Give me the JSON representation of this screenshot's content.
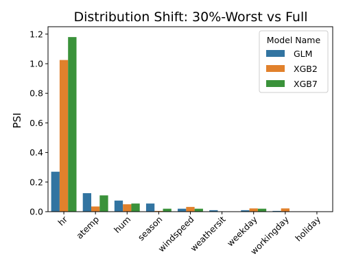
{
  "chart_data": {
    "type": "bar",
    "title": "Distribution Shift: 30%-Worst vs Full",
    "xlabel": "",
    "ylabel": "PSI",
    "ylim": [
      0,
      1.25
    ],
    "yticks": [
      "0.0",
      "0.2",
      "0.4",
      "0.6",
      "0.8",
      "1.0",
      "1.2"
    ],
    "categories": [
      "hr",
      "atemp",
      "hum",
      "season",
      "windspeed",
      "weathersit",
      "weekday",
      "workingday",
      "holiday"
    ],
    "legend": {
      "title": "Model Name",
      "placement": "top-right"
    },
    "series": [
      {
        "name": "GLM",
        "color": "#3274a1",
        "values": [
          0.27,
          0.125,
          0.075,
          0.055,
          0.02,
          0.01,
          0.01,
          0.005,
          0.0
        ]
      },
      {
        "name": "XGB2",
        "color": "#e1812c",
        "values": [
          1.025,
          0.035,
          0.05,
          0.005,
          0.032,
          0.0,
          0.022,
          0.022,
          0.0
        ]
      },
      {
        "name": "XGB7",
        "color": "#3a923a",
        "values": [
          1.18,
          0.11,
          0.055,
          0.02,
          0.02,
          0.0,
          0.02,
          0.0,
          0.0
        ]
      }
    ]
  }
}
